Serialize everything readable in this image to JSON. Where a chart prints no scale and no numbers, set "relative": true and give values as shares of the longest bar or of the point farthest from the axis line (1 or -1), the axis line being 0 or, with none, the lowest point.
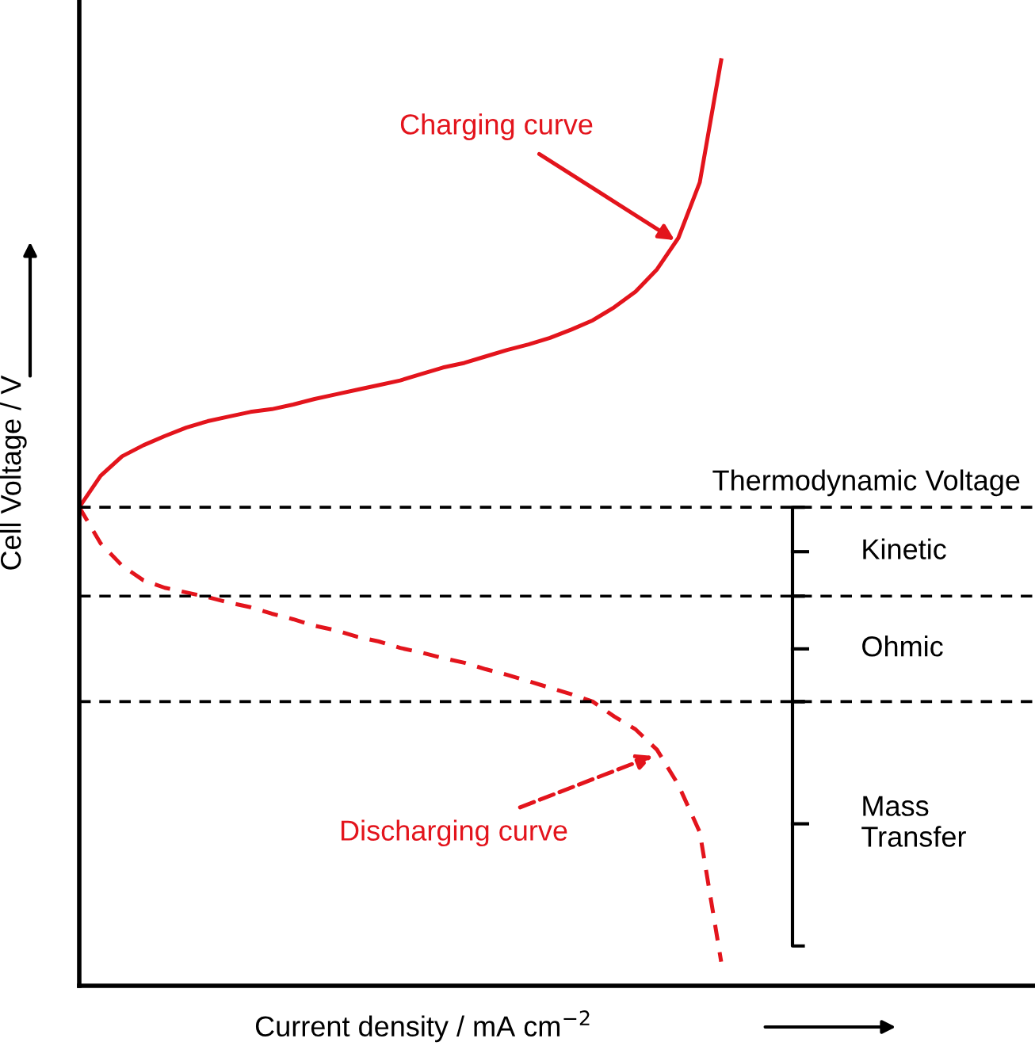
{
  "chart_data": {
    "type": "line",
    "relative": true,
    "xlabel": "Current density / mA cm$^{−2}$",
    "ylabel": "Cell Voltage / V",
    "categories": [
      null,
      null,
      null,
      null,
      null,
      null,
      null,
      null,
      null,
      null,
      null,
      null,
      null,
      null,
      null,
      null,
      null,
      null,
      null,
      null,
      null,
      null,
      null,
      null,
      null,
      null,
      null,
      null,
      null,
      null,
      null
    ],
    "series": [
      {
        "color": "#e3141c",
        "line_style": "solid",
        "values": [
          0.517,
          0.551,
          0.572,
          0.584,
          0.594,
          0.603,
          0.61,
          0.615,
          0.62,
          0.623,
          0.628,
          0.634,
          0.639,
          0.644,
          0.649,
          0.654,
          0.661,
          0.668,
          0.673,
          0.68,
          0.687,
          0.693,
          0.7,
          0.709,
          0.719,
          0.733,
          0.75,
          0.774,
          0.808,
          0.868,
          1.0
        ]
      },
      {
        "color": "#e3141c",
        "line_style": "dashed",
        "values": [
          0.517,
          0.478,
          0.454,
          0.438,
          0.43,
          0.425,
          0.42,
          0.414,
          0.409,
          0.402,
          0.396,
          0.389,
          0.384,
          0.377,
          0.372,
          0.365,
          0.36,
          0.354,
          0.349,
          0.342,
          0.336,
          0.329,
          0.322,
          0.315,
          0.307,
          0.291,
          0.277,
          0.255,
          0.217,
          0.166,
          0.026
        ]
      }
    ],
    "ref_lines": [
      {
        "axis": "y",
        "value": 0.517,
        "label": "Thermodynamic Voltage",
        "color": "#000000",
        "line_style": "dashed"
      },
      {
        "axis": "y",
        "value": 0.421,
        "color": "#000000",
        "line_style": "dashed"
      },
      {
        "axis": "y",
        "value": 0.307,
        "color": "#000000",
        "line_style": "dashed"
      }
    ],
    "annotations": [
      "Charging curve",
      "Discharging curve",
      "Kinetic",
      "Ohmic",
      "Mass\nTransfer"
    ],
    "legend": false,
    "marker": "none"
  }
}
